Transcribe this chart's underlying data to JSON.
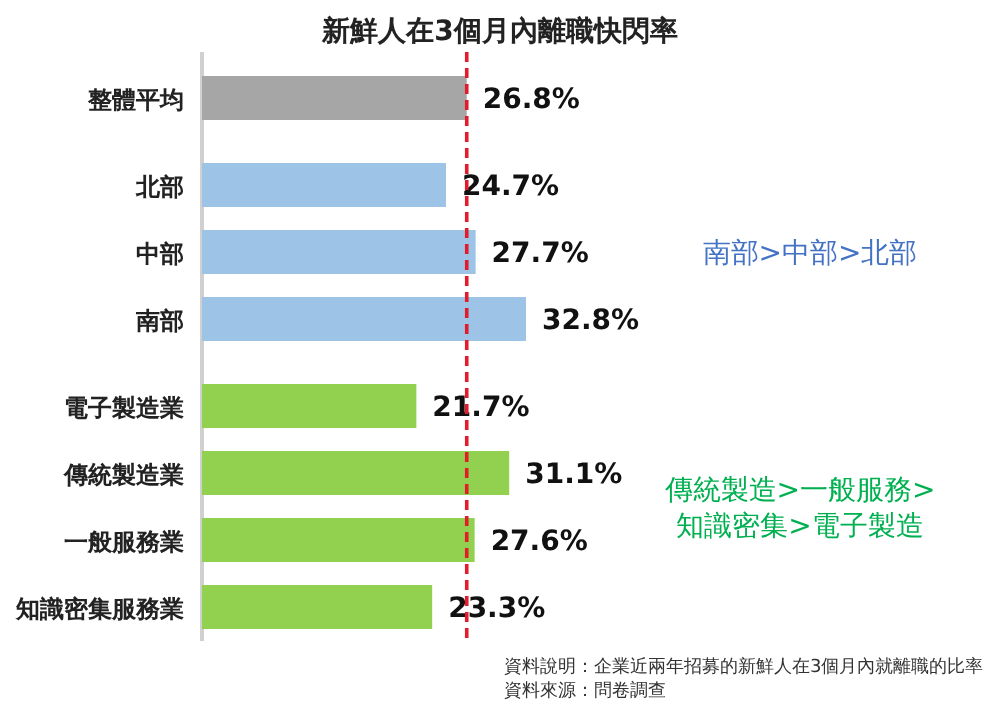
{
  "chart_data": {
    "type": "bar",
    "orientation": "horizontal",
    "title": "新鮮人在3個月內離職快閃率",
    "categories": [
      "整體平均",
      "北部",
      "中部",
      "南部",
      "電子製造業",
      "傳統製造業",
      "一般服務業",
      "知識密集服務業"
    ],
    "values": [
      26.8,
      24.7,
      27.7,
      32.8,
      21.7,
      31.1,
      27.6,
      23.3
    ],
    "colors": [
      "#a6a6a6",
      "#9dc3e6",
      "#9dc3e6",
      "#9dc3e6",
      "#92d050",
      "#92d050",
      "#92d050",
      "#92d050"
    ],
    "value_labels": [
      "26.8%",
      "24.7%",
      "27.7%",
      "32.8%",
      "21.7%",
      "31.1%",
      "27.6%",
      "23.3%"
    ],
    "ref_lines": [
      {
        "axis": "x",
        "value": 26.8,
        "color": "#e31c2b",
        "line_style": "dashed"
      }
    ],
    "annotations": [
      "南部>中部>北部",
      "傳統製造>一般服務>\n知識密集>電子製造",
      "資料說明：企業近兩年招募的新鮮人在3個月內就離職的比率",
      "資料來源：問卷調查"
    ]
  }
}
